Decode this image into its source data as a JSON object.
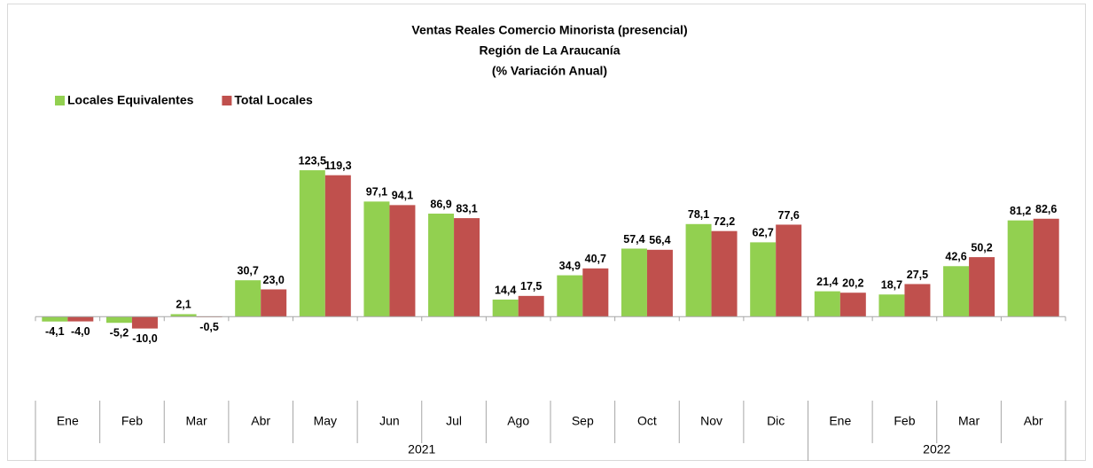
{
  "chart_data": {
    "type": "bar",
    "title": [
      "Ventas Reales Comercio Minorista (presencial)",
      "Región de La Araucanía",
      "(% Variación Anual)"
    ],
    "categories": [
      "Ene",
      "Feb",
      "Mar",
      "Abr",
      "May",
      "Jun",
      "Jul",
      "Ago",
      "Sep",
      "Oct",
      "Nov",
      "Dic",
      "Ene",
      "Feb",
      "Mar",
      "Abr"
    ],
    "year_groups": [
      {
        "label": "2021",
        "span": 12
      },
      {
        "label": "2022",
        "span": 4
      }
    ],
    "series": [
      {
        "name": "Locales Equivalentes",
        "color": "#92d050",
        "values": [
          -4.1,
          -5.2,
          2.1,
          30.7,
          123.5,
          97.1,
          86.9,
          14.4,
          34.9,
          57.4,
          78.1,
          62.7,
          21.4,
          18.7,
          42.6,
          81.2
        ],
        "value_labels": [
          "-4,1",
          "-5,2",
          "2,1",
          "30,7",
          "123,5",
          "97,1",
          "86,9",
          "14,4",
          "34,9",
          "57,4",
          "78,1",
          "62,7",
          "21,4",
          "18,7",
          "42,6",
          "81,2"
        ]
      },
      {
        "name": "Total Locales",
        "color": "#c0504d",
        "values": [
          -4.0,
          -10.0,
          -0.5,
          23.0,
          119.3,
          94.1,
          83.1,
          17.5,
          40.7,
          56.4,
          72.2,
          77.6,
          20.2,
          27.5,
          50.2,
          82.6
        ],
        "value_labels": [
          "-4,0",
          "-10,0",
          "-0,5",
          "23,0",
          "119,3",
          "94,1",
          "83,1",
          "17,5",
          "40,7",
          "56,4",
          "72,2",
          "77,6",
          "20,2",
          "27,5",
          "50,2",
          "82,6"
        ]
      }
    ],
    "ylim": [
      -20,
      140
    ],
    "legend": "top-left"
  }
}
